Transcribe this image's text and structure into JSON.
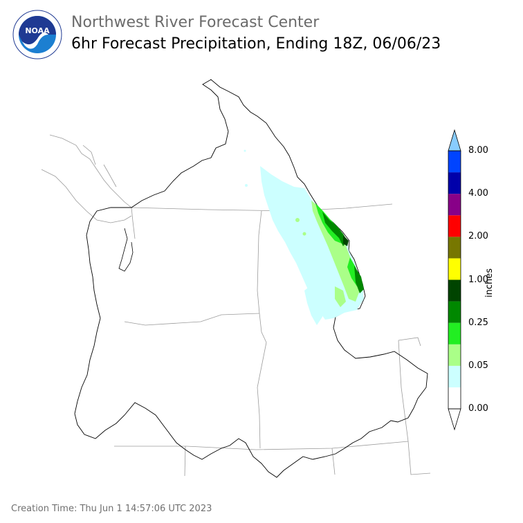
{
  "header": {
    "agency": "Northwest River Forecast Center",
    "product": "6hr Forecast Precipitation, Ending 18Z, 06/06/23"
  },
  "logo": {
    "text": "NOAA",
    "ring_text": "NATIONAL OCEANIC AND ATMOSPHERIC ADMINISTRATION · U.S. DEPARTMENT OF COMMERCE",
    "colors": {
      "ring": "#ffffff",
      "sky": "#1f3a93",
      "sea": "#1c7fd1"
    }
  },
  "colorbar": {
    "unit_label": "inches",
    "tick_labels": [
      "0.00",
      "0.05",
      "0.25",
      "1.00",
      "2.00",
      "4.00",
      "8.00"
    ],
    "bins": [
      {
        "color": "#ffffff"
      },
      {
        "color": "#ccffff"
      },
      {
        "color": "#aaff88"
      },
      {
        "color": "#22ee22"
      },
      {
        "color": "#008800"
      },
      {
        "color": "#004400"
      },
      {
        "color": "#ffff00"
      },
      {
        "color": "#777700"
      },
      {
        "color": "#ff0000"
      },
      {
        "color": "#880088"
      },
      {
        "color": "#0000aa"
      },
      {
        "color": "#0044ff"
      },
      {
        "color": "#88ccff"
      }
    ]
  },
  "footer": {
    "creation_time": "Creation Time: Thu Jun 1 14:57:06 UTC 2023"
  }
}
